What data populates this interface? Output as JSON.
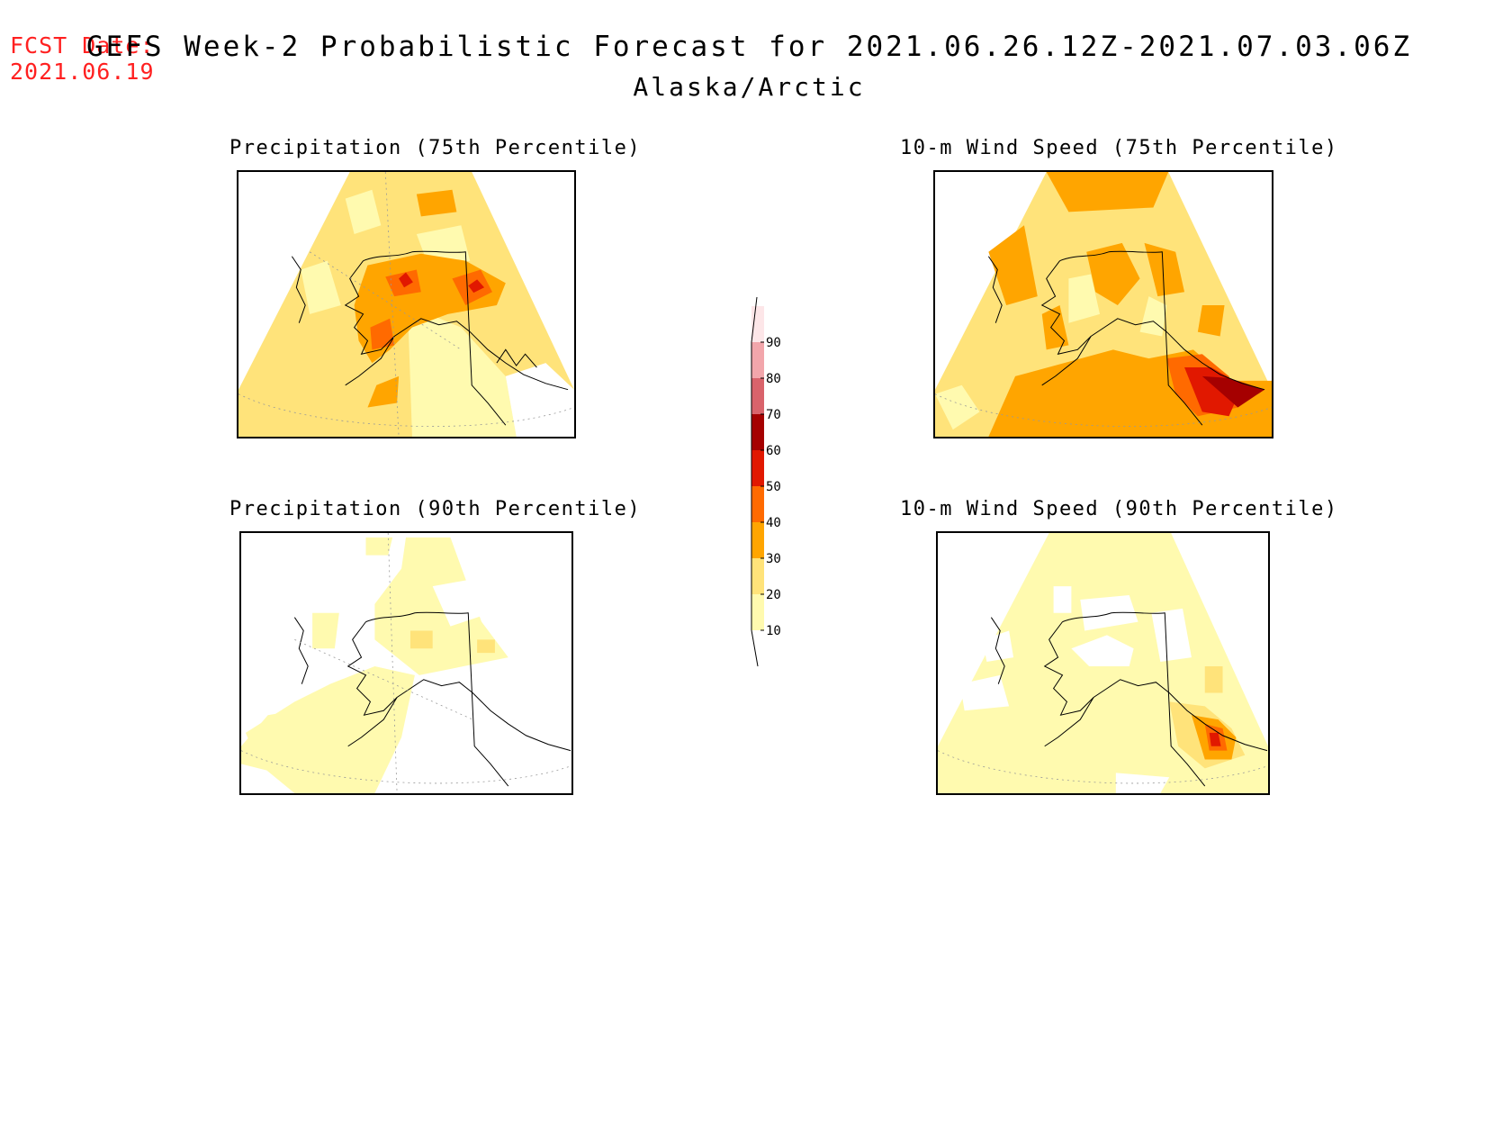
{
  "header": {
    "fcst_label": "FCST Date:",
    "fcst_date": "2021.06.19",
    "title": "GEFS Week-2 Probabilistic Forecast for 2021.06.26.12Z-2021.07.03.06Z",
    "region": "Alaska/Arctic"
  },
  "panels": {
    "precip75": {
      "title": "Precipitation (75th Percentile)"
    },
    "wind75": {
      "title": "10-m Wind Speed (75th Percentile)"
    },
    "precip90": {
      "title": "Precipitation (90th Percentile)"
    },
    "wind90": {
      "title": "10-m Wind Speed (90th Percentile)"
    }
  },
  "colorbar": {
    "levels": [
      "10",
      "20",
      "30",
      "40",
      "50",
      "60",
      "70",
      "80",
      "90"
    ],
    "colors": [
      "#fffaaf",
      "#ffe37a",
      "#ffa500",
      "#ff6a00",
      "#e11800",
      "#a50000",
      "#d9636b",
      "#f2a6ab",
      "#fde6e8"
    ]
  }
}
